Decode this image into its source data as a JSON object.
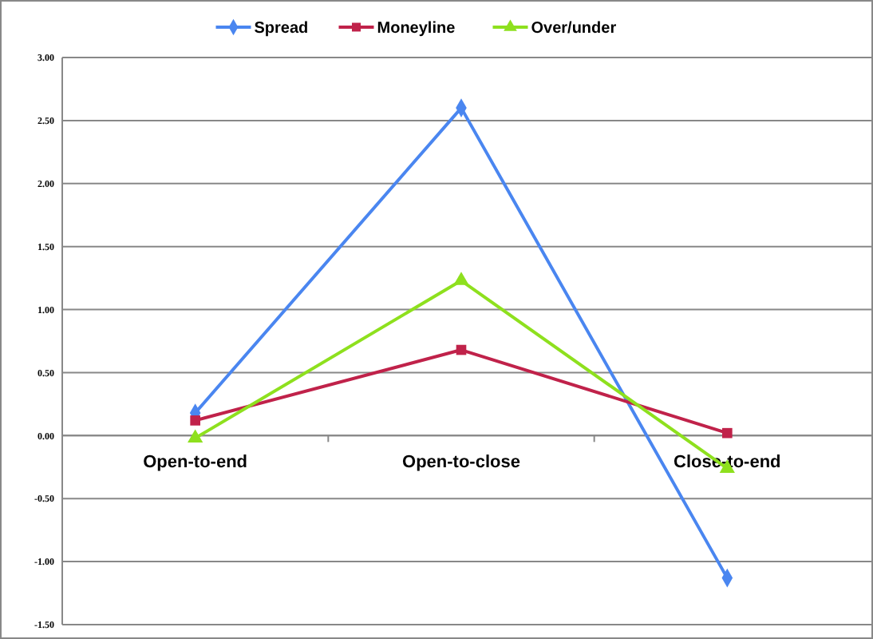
{
  "chart_data": {
    "type": "line",
    "categories": [
      "Open-to-end",
      "Open-to-close",
      "Close-to-end"
    ],
    "series": [
      {
        "name": "Spread",
        "color": "#4a86f0",
        "marker": "diamond",
        "values": [
          0.18,
          2.6,
          -1.13
        ]
      },
      {
        "name": "Moneyline",
        "color": "#c0224a",
        "marker": "square",
        "values": [
          0.12,
          0.68,
          0.02
        ]
      },
      {
        "name": "Over/under",
        "color": "#8ee01e",
        "marker": "triangle",
        "values": [
          -0.02,
          1.23,
          -0.26
        ]
      }
    ],
    "ylim": [
      -1.5,
      3
    ],
    "yticks": [
      {
        "value": -1.5,
        "label": "-1.50"
      },
      {
        "value": -1,
        "label": "-1.00"
      },
      {
        "value": -0.5,
        "label": "-0.50"
      },
      {
        "value": 0,
        "label": "0.00"
      },
      {
        "value": 0.5,
        "label": "0.50"
      },
      {
        "value": 1,
        "label": "1.00"
      },
      {
        "value": 1.5,
        "label": "1.50"
      },
      {
        "value": 2,
        "label": "2.00"
      },
      {
        "value": 2.5,
        "label": "2.50"
      },
      {
        "value": 3,
        "label": "3.00"
      }
    ],
    "grid": "y",
    "legend": "top",
    "line_style": "solid"
  }
}
